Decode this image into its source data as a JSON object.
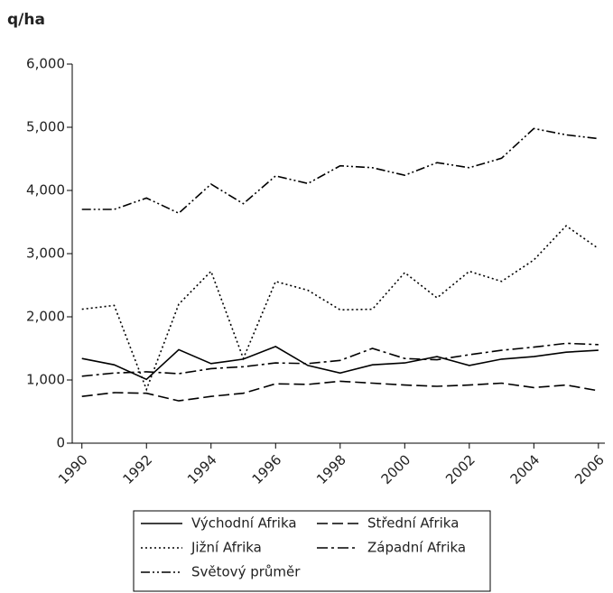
{
  "chart_data": {
    "type": "line",
    "ylabel": "q/ha",
    "x": [
      1990,
      1991,
      1992,
      1993,
      1994,
      1995,
      1996,
      1997,
      1998,
      1999,
      2000,
      2001,
      2002,
      2003,
      2004,
      2005,
      2006
    ],
    "xlim": [
      1989.7,
      2006.2
    ],
    "xticks": [
      1990,
      1992,
      1994,
      1996,
      1998,
      2000,
      2002,
      2004,
      2006
    ],
    "ylim": [
      0,
      6000
    ],
    "yticks": [
      0,
      {
        "value": 1000,
        "label": "1,000"
      },
      {
        "value": 2000,
        "label": "2,000"
      },
      {
        "value": 3000,
        "label": "3,000"
      },
      {
        "value": 4000,
        "label": "4,000"
      },
      {
        "value": 5000,
        "label": "5,000"
      },
      {
        "value": 6000,
        "label": "6,000"
      }
    ],
    "grid": false,
    "legend": "bottom",
    "series": [
      {
        "name": "Východní Afrika",
        "color": "#000000",
        "dash": "solid",
        "values": [
          1340,
          1240,
          1010,
          1480,
          1260,
          1330,
          1530,
          1230,
          1110,
          1240,
          1270,
          1370,
          1230,
          1330,
          1370,
          1440,
          1470
        ]
      },
      {
        "name": "Střední Afrika",
        "color": "#000000",
        "dash": "dashed",
        "values": [
          740,
          800,
          790,
          670,
          740,
          790,
          940,
          930,
          980,
          950,
          920,
          900,
          920,
          950,
          880,
          920,
          830
        ]
      },
      {
        "name": "Jižní Afrika",
        "color": "#000000",
        "dash": "dotted",
        "values": [
          2120,
          2180,
          850,
          2200,
          2720,
          1340,
          2560,
          2420,
          2110,
          2120,
          2700,
          2300,
          2720,
          2560,
          2900,
          3440,
          3080
        ]
      },
      {
        "name": "Západní Afrika",
        "color": "#000000",
        "dash": "dashdot",
        "values": [
          1060,
          1110,
          1130,
          1100,
          1180,
          1210,
          1270,
          1260,
          1310,
          1500,
          1340,
          1320,
          1400,
          1470,
          1520,
          1580,
          1560
        ]
      },
      {
        "name": "Světový průměr",
        "color": "#000000",
        "dash": "dashdotdot",
        "values": [
          3700,
          3700,
          3880,
          3640,
          4100,
          3790,
          4230,
          4110,
          4390,
          4360,
          4240,
          4440,
          4360,
          4510,
          4980,
          4880,
          4820
        ]
      }
    ]
  }
}
